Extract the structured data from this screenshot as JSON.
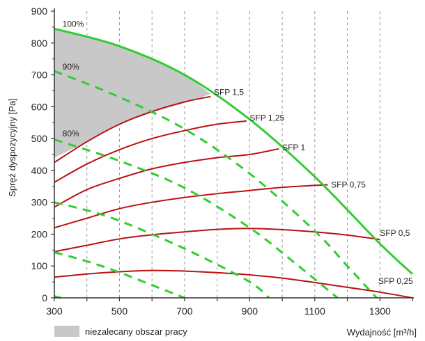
{
  "chart_data": {
    "type": "line",
    "xlabel": "Wydajność [m³/h]",
    "ylabel": "Spręż dyspozycyjny [Pa]",
    "xlim": [
      300,
      1400
    ],
    "ylim": [
      0,
      900
    ],
    "x_ticks": [
      300,
      500,
      700,
      900,
      1100,
      1300
    ],
    "y_ticks": [
      0,
      100,
      200,
      300,
      400,
      500,
      600,
      700,
      800,
      900
    ],
    "grid": "vertical dashed",
    "colors": {
      "fan_curve": "#33cc33",
      "sfp_curve": "#bb1111",
      "shaded_area": "#c8c8c8",
      "grid": "#999999"
    },
    "fan_curves": [
      {
        "name": "100%",
        "label": "100%",
        "style": "solid",
        "points": [
          [
            300,
            845
          ],
          [
            500,
            790
          ],
          [
            700,
            700
          ],
          [
            900,
            560
          ],
          [
            1100,
            380
          ],
          [
            1300,
            170
          ],
          [
            1400,
            75
          ]
        ],
        "label_at": [
          325,
          860
        ]
      },
      {
        "name": "90%",
        "label": "90%",
        "style": "dashed",
        "points": [
          [
            300,
            712
          ],
          [
            500,
            630
          ],
          [
            700,
            530
          ],
          [
            900,
            390
          ],
          [
            1100,
            210
          ],
          [
            1200,
            100
          ],
          [
            1290,
            0
          ]
        ],
        "label_at": [
          325,
          725
        ]
      },
      {
        "name": "80%",
        "label": "80%",
        "style": "dashed",
        "points": [
          [
            300,
            497
          ],
          [
            500,
            430
          ],
          [
            700,
            345
          ],
          [
            900,
            220
          ],
          [
            1050,
            100
          ],
          [
            1170,
            0
          ]
        ],
        "label_at": [
          325,
          515
        ]
      },
      {
        "name": "",
        "label": "",
        "style": "dashed",
        "points": [
          [
            300,
            300
          ],
          [
            450,
            260
          ],
          [
            600,
            200
          ],
          [
            750,
            130
          ],
          [
            900,
            50
          ],
          [
            960,
            0
          ]
        ],
        "label_at": null
      },
      {
        "name": "",
        "label": "",
        "style": "dashed",
        "points": [
          [
            300,
            143
          ],
          [
            400,
            115
          ],
          [
            500,
            80
          ],
          [
            600,
            40
          ],
          [
            700,
            0
          ]
        ],
        "label_at": null
      },
      {
        "name": "",
        "label": "",
        "style": "dashed",
        "points": [
          [
            300,
            5
          ],
          [
            320,
            0
          ]
        ],
        "label_at": null
      }
    ],
    "sfp_curves": [
      {
        "label": "SFP 1,5",
        "points": [
          [
            300,
            425
          ],
          [
            400,
            490
          ],
          [
            500,
            545
          ],
          [
            600,
            585
          ],
          [
            700,
            615
          ],
          [
            780,
            632
          ]
        ],
        "label_at": [
          790,
          645
        ]
      },
      {
        "label": "SFP 1,25",
        "points": [
          [
            300,
            363
          ],
          [
            400,
            420
          ],
          [
            500,
            465
          ],
          [
            600,
            500
          ],
          [
            700,
            525
          ],
          [
            800,
            545
          ],
          [
            890,
            555
          ]
        ],
        "label_at": [
          900,
          565
        ]
      },
      {
        "label": "SFP 1",
        "points": [
          [
            300,
            285
          ],
          [
            400,
            340
          ],
          [
            500,
            375
          ],
          [
            600,
            405
          ],
          [
            700,
            425
          ],
          [
            800,
            440
          ],
          [
            900,
            450
          ],
          [
            990,
            468
          ]
        ],
        "label_at": [
          1000,
          472
        ]
      },
      {
        "label": "SFP 0,75",
        "points": [
          [
            300,
            220
          ],
          [
            400,
            250
          ],
          [
            500,
            280
          ],
          [
            600,
            300
          ],
          [
            700,
            315
          ],
          [
            800,
            327
          ],
          [
            900,
            337
          ],
          [
            1000,
            347
          ],
          [
            1100,
            353
          ],
          [
            1140,
            355
          ]
        ],
        "label_at": [
          1150,
          355
        ]
      },
      {
        "label": "SFP 0,5",
        "points": [
          [
            300,
            145
          ],
          [
            400,
            165
          ],
          [
            500,
            185
          ],
          [
            600,
            198
          ],
          [
            700,
            207
          ],
          [
            800,
            215
          ],
          [
            900,
            218
          ],
          [
            1000,
            214
          ],
          [
            1100,
            207
          ],
          [
            1200,
            197
          ],
          [
            1300,
            183
          ]
        ],
        "label_at": [
          1300,
          203
        ]
      },
      {
        "label": "SFP 0,25",
        "points": [
          [
            300,
            65
          ],
          [
            400,
            75
          ],
          [
            500,
            82
          ],
          [
            600,
            86
          ],
          [
            700,
            84
          ],
          [
            800,
            79
          ],
          [
            900,
            72
          ],
          [
            1000,
            62
          ],
          [
            1100,
            48
          ],
          [
            1200,
            33
          ],
          [
            1300,
            18
          ],
          [
            1400,
            0
          ]
        ],
        "label_at": [
          1295,
          52
        ]
      }
    ],
    "shaded_region": {
      "label": "niezalecany obszar pracy",
      "upper": [
        [
          300,
          845
        ],
        [
          400,
          820
        ],
        [
          500,
          790
        ],
        [
          600,
          750
        ],
        [
          700,
          700
        ],
        [
          780,
          640
        ]
      ],
      "lower": [
        [
          780,
          640
        ],
        [
          700,
          612
        ],
        [
          600,
          582
        ],
        [
          500,
          545
        ],
        [
          400,
          490
        ],
        [
          300,
          440
        ]
      ]
    }
  }
}
